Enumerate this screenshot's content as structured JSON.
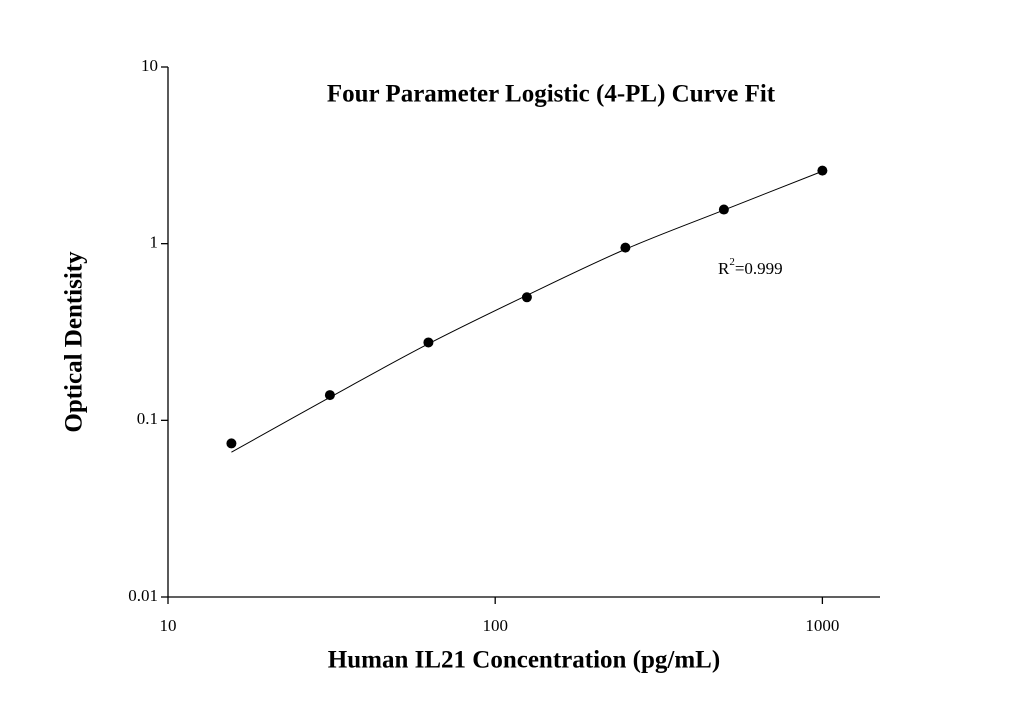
{
  "chart_data": {
    "type": "scatter",
    "title": "Four Parameter Logistic (4-PL) Curve Fit",
    "x_label": "Human IL21 Concentration (pg/mL)",
    "y_label": "Optical Dentisity",
    "x_log": true,
    "y_log": true,
    "xlim": [
      10,
      1500
    ],
    "ylim": [
      0.01,
      10
    ],
    "xticks": [
      10,
      100,
      1000
    ],
    "yticks": [
      0.01,
      0.1,
      1,
      10
    ],
    "x": [
      15.625,
      31.25,
      62.5,
      125,
      250,
      500,
      1000
    ],
    "values": [
      0.074,
      0.139,
      0.276,
      0.497,
      0.95,
      1.56,
      2.59
    ],
    "color": "#000000",
    "fit": {
      "x": [
        15.625,
        31.25,
        62.5,
        125,
        250,
        500,
        1000
      ],
      "values": [
        0.066,
        0.135,
        0.271,
        0.51,
        0.93,
        1.55,
        2.57
      ]
    },
    "annotation": {
      "base": "R",
      "superscript": "2",
      "text": "=0.999"
    }
  }
}
